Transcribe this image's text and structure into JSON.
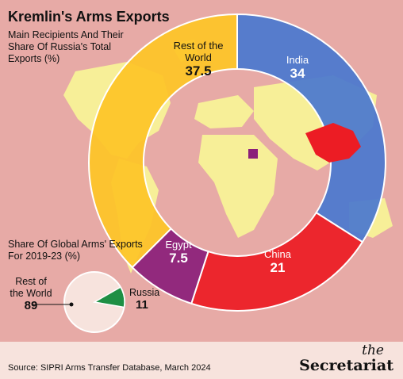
{
  "title": "Kremlin's Arms Exports",
  "subtitle": "Main Recipients And Their Share Of Russia's Total Exports (%)",
  "subtitle2": "Share Of Global Arms' Exports For 2019-23 (%)",
  "source": "Source: SIPRI Arms Transfer Database, March 2024",
  "logo": {
    "the": "the",
    "main": "Secretariat"
  },
  "colors": {
    "background": "#e7aaa6",
    "india": "#4a78cf",
    "china": "#ec1c24",
    "egypt": "#8b1f7a",
    "rest": "#fdc527",
    "russia": "#1e8f44",
    "land": "#f7ef98"
  },
  "labels": {
    "rest": "Rest of the World",
    "rest_val": "37.5",
    "india": "India",
    "india_val": "34",
    "china": "China",
    "china_val": "21",
    "egypt": "Egypt",
    "egypt_val": "7.5",
    "pie_rest": "Rest of the World",
    "pie_rest_val": "89",
    "pie_russia": "Russia",
    "pie_russia_val": "11"
  },
  "chart_data": [
    {
      "type": "pie",
      "title": "Main Recipients And Their Share Of Russia's Total Exports (%)",
      "categories": [
        "India",
        "China",
        "Egypt",
        "Rest of the World"
      ],
      "values": [
        34,
        21,
        7.5,
        37.5
      ]
    },
    {
      "type": "pie",
      "title": "Share Of Global Arms' Exports For 2019-23 (%)",
      "categories": [
        "Russia",
        "Rest of the World"
      ],
      "values": [
        11,
        89
      ]
    }
  ]
}
